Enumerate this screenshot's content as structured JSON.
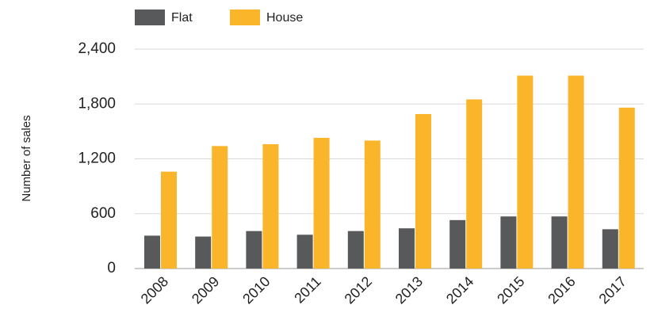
{
  "chart_data": {
    "type": "bar",
    "y_label": "Number of sales",
    "categories": [
      "2008",
      "2009",
      "2010",
      "2011",
      "2012",
      "2013",
      "2014",
      "2015",
      "2016",
      "2017"
    ],
    "series": [
      {
        "name": "Flat",
        "color": "#58595b",
        "values": [
          360,
          350,
          410,
          370,
          410,
          440,
          530,
          570,
          570,
          430
        ]
      },
      {
        "name": "House",
        "color": "#fbb52b",
        "values": [
          1060,
          1340,
          1360,
          1430,
          1400,
          1690,
          1850,
          2110,
          2110,
          1760
        ]
      }
    ],
    "ylim": [
      0,
      2400
    ],
    "yticks": [
      0,
      600,
      {
        "value": 1200,
        "label": "1,200"
      },
      {
        "value": 1800,
        "label": "1,800"
      },
      {
        "value": 2400,
        "label": "2,400"
      }
    ],
    "grid": true,
    "legend": "top"
  }
}
